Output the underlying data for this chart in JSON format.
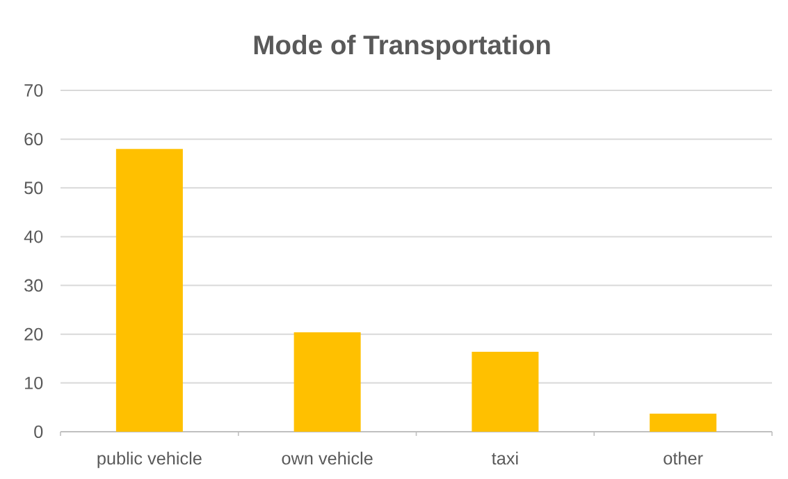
{
  "chart_data": {
    "type": "bar",
    "title": "Mode of Transportation",
    "categories": [
      "public vehicle",
      "own vehicle",
      "taxi",
      "other"
    ],
    "values": [
      58,
      20.4,
      16.4,
      3.7
    ],
    "color": "#ffc000",
    "ylim": [
      0,
      70
    ],
    "yticks": [
      0,
      10,
      20,
      30,
      40,
      50,
      60,
      70
    ],
    "grid": "y"
  }
}
